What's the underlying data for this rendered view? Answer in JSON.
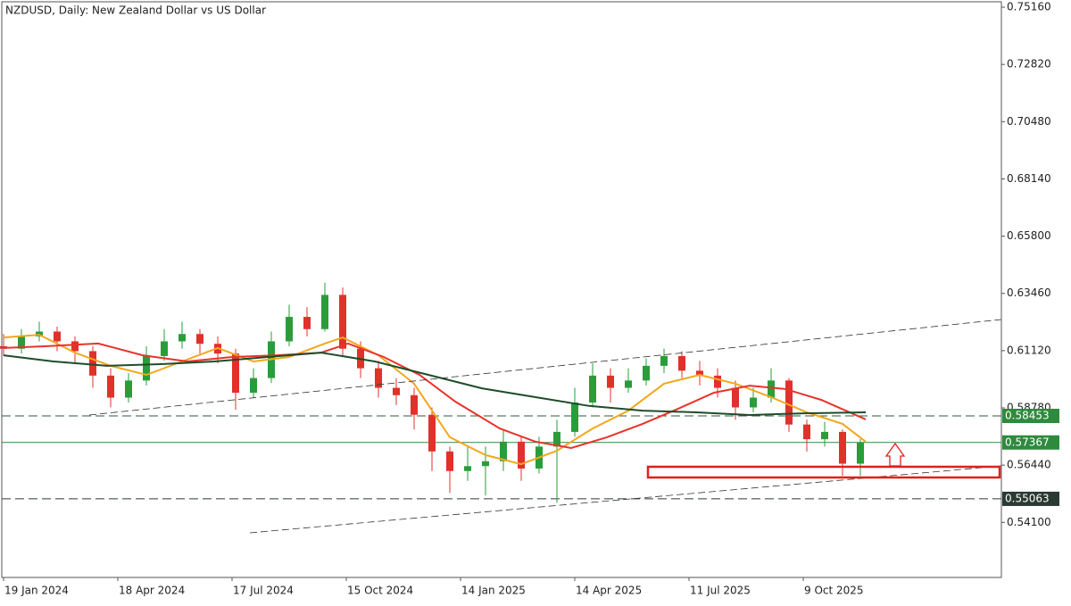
{
  "chart_data": {
    "type": "candlestick",
    "title": "NZDUSD, Daily:  New Zealand Dollar vs US Dollar",
    "x": [
      0,
      10,
      20,
      30,
      40,
      50,
      60,
      70,
      80,
      90,
      100,
      110,
      120,
      130,
      140,
      150,
      160,
      170,
      180,
      190,
      200,
      210,
      220,
      230,
      240,
      250,
      260,
      270,
      280,
      290,
      300,
      310,
      320,
      330,
      340,
      350,
      360,
      370,
      380,
      390,
      400,
      410,
      420,
      430,
      440,
      450,
      460,
      470,
      480
    ],
    "open": [
      0.613,
      0.612,
      0.617,
      0.619,
      0.615,
      0.611,
      0.601,
      0.592,
      0.599,
      0.609,
      0.615,
      0.618,
      0.614,
      0.61,
      0.594,
      0.6,
      0.615,
      0.625,
      0.62,
      0.634,
      0.612,
      0.604,
      0.596,
      0.593,
      0.585,
      0.57,
      0.562,
      0.564,
      0.566,
      0.574,
      0.563,
      0.572,
      0.578,
      0.59,
      0.601,
      0.596,
      0.599,
      0.605,
      0.609,
      0.603,
      0.601,
      0.596,
      0.588,
      0.592,
      0.599,
      0.581,
      0.575,
      0.578,
      0.565
    ],
    "high": [
      0.618,
      0.62,
      0.623,
      0.621,
      0.617,
      0.613,
      0.604,
      0.602,
      0.613,
      0.62,
      0.623,
      0.62,
      0.617,
      0.612,
      0.604,
      0.619,
      0.63,
      0.629,
      0.639,
      0.637,
      0.615,
      0.607,
      0.6,
      0.596,
      0.588,
      0.572,
      0.572,
      0.572,
      0.579,
      0.576,
      0.576,
      0.583,
      0.596,
      0.606,
      0.604,
      0.604,
      0.608,
      0.612,
      0.611,
      0.607,
      0.604,
      0.599,
      0.596,
      0.604,
      0.6,
      0.583,
      0.582,
      0.579,
      0.575
    ],
    "low": [
      0.609,
      0.61,
      0.615,
      0.611,
      0.606,
      0.596,
      0.588,
      0.59,
      0.597,
      0.607,
      0.612,
      0.61,
      0.606,
      0.587,
      0.592,
      0.598,
      0.613,
      0.617,
      0.619,
      0.609,
      0.6,
      0.592,
      0.589,
      0.579,
      0.562,
      0.553,
      0.558,
      0.552,
      0.562,
      0.558,
      0.561,
      0.549,
      0.576,
      0.588,
      0.59,
      0.594,
      0.597,
      0.602,
      0.6,
      0.597,
      0.592,
      0.583,
      0.586,
      0.59,
      0.578,
      0.57,
      0.572,
      0.56,
      0.56
    ],
    "close": [
      0.612,
      0.617,
      0.619,
      0.615,
      0.611,
      0.601,
      0.592,
      0.599,
      0.609,
      0.615,
      0.618,
      0.614,
      0.61,
      0.594,
      0.6,
      0.615,
      0.625,
      0.62,
      0.634,
      0.612,
      0.604,
      0.596,
      0.593,
      0.585,
      0.57,
      0.562,
      0.564,
      0.566,
      0.574,
      0.563,
      0.572,
      0.578,
      0.59,
      0.601,
      0.596,
      0.599,
      0.605,
      0.609,
      0.603,
      0.601,
      0.596,
      0.588,
      0.592,
      0.599,
      0.581,
      0.575,
      0.578,
      0.565,
      0.5737
    ],
    "up_color": "#2a9d3a",
    "down_color": "#e0312b",
    "moving_averages": [
      {
        "color": "#f0a81e",
        "x": [
          0,
          20,
          40,
          60,
          80,
          100,
          120,
          140,
          160,
          180,
          190,
          210,
          230,
          250,
          270,
          290,
          310,
          330,
          350,
          370,
          390,
          410,
          430,
          450,
          470,
          483
        ],
        "values": [
          0.6166,
          0.6177,
          0.6104,
          0.605,
          0.6013,
          0.6068,
          0.6123,
          0.6068,
          0.6086,
          0.6141,
          0.6166,
          0.6093,
          0.5977,
          0.5758,
          0.5685,
          0.5648,
          0.5703,
          0.5794,
          0.5867,
          0.5977,
          0.6013,
          0.5977,
          0.5922,
          0.586,
          0.5813,
          0.574
        ]
      },
      {
        "color": "#e8332a",
        "x": [
          0,
          23,
          53,
          78,
          103,
          128,
          153,
          178,
          193,
          213,
          233,
          253,
          278,
          298,
          318,
          338,
          358,
          378,
          398,
          418,
          438,
          458,
          483
        ],
        "values": [
          0.6123,
          0.613,
          0.6141,
          0.6093,
          0.6068,
          0.6086,
          0.6093,
          0.6104,
          0.6141,
          0.6086,
          0.6013,
          0.5904,
          0.5794,
          0.574,
          0.5714,
          0.5758,
          0.5813,
          0.5875,
          0.594,
          0.5969,
          0.5955,
          0.5911,
          0.5831
        ]
      },
      {
        "color": "#1e4d2b",
        "x": [
          0,
          28,
          58,
          88,
          118,
          148,
          178,
          208,
          238,
          268,
          298,
          328,
          358,
          388,
          418,
          448,
          483
        ],
        "values": [
          0.6093,
          0.6068,
          0.605,
          0.6057,
          0.6068,
          0.6086,
          0.6104,
          0.6068,
          0.6013,
          0.5958,
          0.5922,
          0.5886,
          0.5867,
          0.586,
          0.5849,
          0.5856,
          0.586
        ]
      }
    ],
    "levels": [
      {
        "value": 0.58453,
        "color": "#2e8b3e",
        "style": "dashed",
        "line_color": "#2f5a3a"
      },
      {
        "value": 0.57367,
        "color": "#2e8b3e",
        "style": "solid",
        "line_color": "#2e8b3e"
      },
      {
        "value": 0.55063,
        "color": "#2b3a33",
        "style": "dashed",
        "line_color": "#2b3a33"
      }
    ],
    "xlim": [
      -1,
      559
    ],
    "ylim": [
      0.5185,
      0.7538
    ],
    "xticks": [
      {
        "value": 0,
        "label": "19 Jan 2024"
      },
      {
        "value": 64,
        "label": "18 Apr 2024"
      },
      {
        "value": 128,
        "label": "17 Jul 2024"
      },
      {
        "value": 192,
        "label": "15 Oct 2024"
      },
      {
        "value": 256,
        "label": "14 Jan 2025"
      },
      {
        "value": 320,
        "label": "14 Apr 2025"
      },
      {
        "value": 384,
        "label": "11 Jul 2025"
      },
      {
        "value": 448,
        "label": "9 Oct 2025"
      }
    ],
    "yticks": [
      {
        "value": 0.7516,
        "label": "0.75160"
      },
      {
        "value": 0.7282,
        "label": "0.72820"
      },
      {
        "value": 0.7048,
        "label": "0.70480"
      },
      {
        "value": 0.6814,
        "label": "0.68140"
      },
      {
        "value": 0.658,
        "label": "0.65800"
      },
      {
        "value": 0.6346,
        "label": "0.63460"
      },
      {
        "value": 0.6112,
        "label": "0.61120"
      },
      {
        "value": 0.5878,
        "label": "0.58780"
      },
      {
        "value": 0.5644,
        "label": "0.56440"
      },
      {
        "value": 0.541,
        "label": "0.54100"
      }
    ]
  }
}
